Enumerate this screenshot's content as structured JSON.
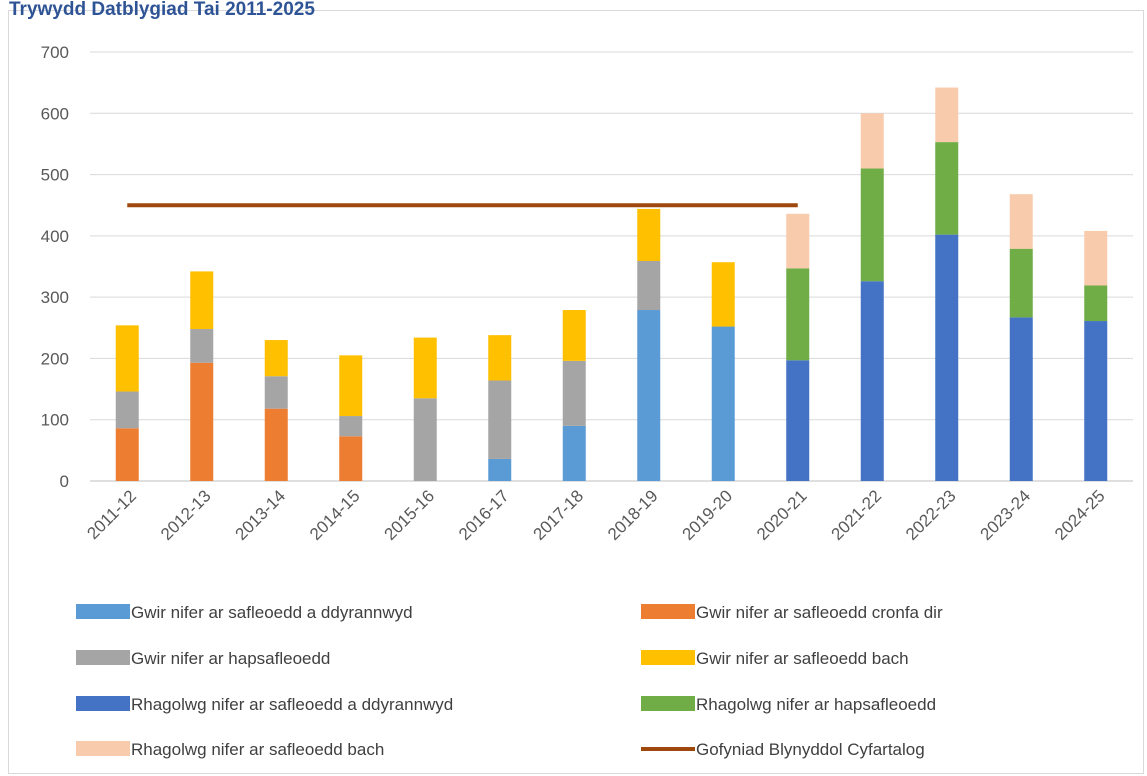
{
  "chart_data": {
    "type": "bar",
    "stacked": true,
    "title": "Trywydd Datblygiad Tai 2011-2025",
    "categories": [
      "2011-12",
      "2012-13",
      "2013-14",
      "2014-15",
      "2015-16",
      "2016-17",
      "2017-18",
      "2018-19",
      "2019-20",
      "2020-21",
      "2021-22",
      "2022-23",
      "2023-24",
      "2024-25"
    ],
    "ylim": [
      0,
      700
    ],
    "yticks": [
      0,
      100,
      200,
      300,
      400,
      500,
      600,
      700
    ],
    "grid": true,
    "legend_position": "bottom",
    "series": [
      {
        "name": "Gwir nifer ar safleoedd a ddyrannwyd",
        "color": "#5b9bd5",
        "values": [
          0,
          0,
          0,
          0,
          0,
          36,
          90,
          279,
          252,
          0,
          0,
          0,
          0,
          0
        ]
      },
      {
        "name": "Gwir nifer ar safleoedd cronfa dir",
        "color": "#ed7d31",
        "values": [
          86,
          193,
          118,
          73,
          0,
          0,
          0,
          0,
          0,
          0,
          0,
          0,
          0,
          0
        ]
      },
      {
        "name": "Gwir nifer ar hapsafleoedd",
        "color": "#a5a5a5",
        "values": [
          60,
          55,
          53,
          33,
          135,
          128,
          106,
          80,
          0,
          0,
          0,
          0,
          0,
          0
        ]
      },
      {
        "name": "Gwir nifer ar safleoedd bach",
        "color": "#ffc000",
        "values": [
          108,
          94,
          59,
          99,
          99,
          74,
          83,
          85,
          105,
          0,
          0,
          0,
          0,
          0
        ]
      },
      {
        "name": "Rhagolwg nifer ar safleoedd a ddyrannwyd",
        "color": "#4472c4",
        "values": [
          0,
          0,
          0,
          0,
          0,
          0,
          0,
          0,
          0,
          197,
          326,
          402,
          267,
          261
        ]
      },
      {
        "name": "Rhagolwg nifer ar  hapsafleoedd",
        "color": "#70ad47",
        "values": [
          0,
          0,
          0,
          0,
          0,
          0,
          0,
          0,
          0,
          150,
          184,
          151,
          112,
          58
        ]
      },
      {
        "name": "Rhagolwg nifer ar safleoedd bach",
        "color": "#f8cbad",
        "values": [
          0,
          0,
          0,
          0,
          0,
          0,
          0,
          0,
          0,
          89,
          90,
          89,
          89,
          89
        ]
      }
    ],
    "line": {
      "name": "Gofyniad Blynyddol Cyfartalog",
      "color": "#9e480e",
      "value": 450,
      "from": "2011-12",
      "to": "2020-21"
    }
  }
}
